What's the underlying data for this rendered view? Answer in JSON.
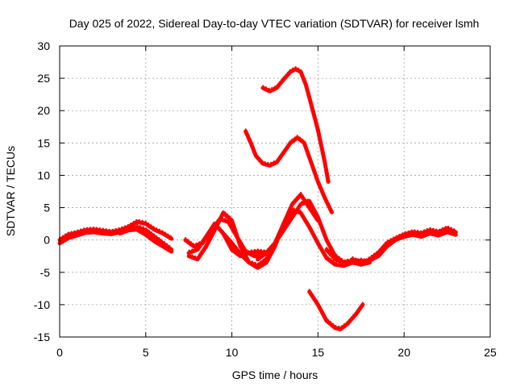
{
  "chart_data": {
    "type": "line",
    "title": "Day 025 of 2022, Sidereal Day-to-day VTEC variation (SDTVAR) for receiver lsmh",
    "xlabel": "GPS time / hours",
    "ylabel": "SDTVAR / TECUs",
    "xlim": [
      0,
      25
    ],
    "ylim": [
      -15,
      30
    ],
    "xticks": [
      0,
      5,
      10,
      15,
      20,
      25
    ],
    "yticks": [
      -15,
      -10,
      -5,
      0,
      5,
      10,
      15,
      20,
      25,
      30
    ],
    "grid": true,
    "color": "#ff0000",
    "series": [
      {
        "name": "arc-early",
        "x": [
          0,
          0.5,
          1,
          1.5,
          2,
          2.5,
          3,
          3.5,
          4,
          4.5,
          5,
          5.5,
          6,
          6.5
        ],
        "y": [
          0,
          0.8,
          1.1,
          1.5,
          1.6,
          1.4,
          1.2,
          1.5,
          2.0,
          2.8,
          2.5,
          1.6,
          1.0,
          0.2
        ]
      },
      {
        "name": "arc-early-2",
        "x": [
          0,
          0.5,
          1,
          1.5,
          2,
          2.5,
          3,
          3.5,
          4,
          4.5,
          5,
          5.5,
          6,
          6.5
        ],
        "y": [
          -0.5,
          0.3,
          0.7,
          1.1,
          1.2,
          1.0,
          0.9,
          1.2,
          1.6,
          2.0,
          1.5,
          0.5,
          -0.5,
          -1.5
        ]
      },
      {
        "name": "arc-early-3",
        "x": [
          3.5,
          4,
          4.5,
          5,
          5.5,
          6,
          6.5
        ],
        "y": [
          1.0,
          1.5,
          1.6,
          0.8,
          -0.2,
          -1.0,
          -1.8
        ]
      },
      {
        "name": "arc-mid-a",
        "x": [
          7.5,
          8,
          8.5,
          9,
          9.5,
          10,
          10.5,
          11,
          11.5,
          12
        ],
        "y": [
          -2.0,
          -1.5,
          0.5,
          2.5,
          1.0,
          -1.5,
          -2.5,
          -2.0,
          -1.8,
          -2.0
        ]
      },
      {
        "name": "arc-mid-b",
        "x": [
          7.3,
          7.8,
          8.3,
          8.8,
          9.3,
          9.8,
          10.3,
          10.8,
          11.3,
          11.8
        ],
        "y": [
          0,
          -1.0,
          -0.5,
          1.5,
          3.2,
          2.8,
          0.5,
          -1.8,
          -2.5,
          -2.4
        ]
      },
      {
        "name": "arc-mid-c",
        "x": [
          7.5,
          8,
          8.5,
          9,
          9.5,
          10,
          10.5,
          11,
          11.5,
          12,
          12.5,
          13,
          13.5,
          14,
          14.5,
          15
        ],
        "y": [
          -2.5,
          -3.0,
          -1.0,
          1.5,
          4.2,
          3.0,
          -1.0,
          -3.5,
          -4.3,
          -3.5,
          -1.0,
          2.5,
          5.5,
          7.0,
          5.0,
          3.0
        ]
      },
      {
        "name": "arc-mid-d",
        "x": [
          9.5,
          10,
          10.5,
          11,
          11.5,
          12,
          12.5,
          13,
          13.5,
          14,
          14.5,
          15,
          15.5,
          16,
          16.5,
          17,
          17.5,
          18
        ],
        "y": [
          1.0,
          -0.5,
          -2.2,
          -3.5,
          -4.0,
          -3.0,
          -0.5,
          2.5,
          4.6,
          4.2,
          2.0,
          -0.5,
          -2.8,
          -3.8,
          -4.0,
          -3.5,
          -3.2,
          -3.5
        ]
      },
      {
        "name": "arc-mid-e",
        "x": [
          11.5,
          12,
          12.5,
          13,
          13.5,
          14,
          14.5,
          15,
          15.5,
          16,
          16.5,
          17,
          17.5,
          18
        ],
        "y": [
          -3.0,
          -2.0,
          -0.5,
          1.5,
          3.5,
          5.5,
          6.0,
          3.5,
          0.0,
          -2.5,
          -3.5,
          -3.2,
          -3.8,
          -3.5
        ]
      },
      {
        "name": "arc-late",
        "x": [
          15.5,
          16,
          16.5,
          17,
          17.5,
          18,
          18.5,
          19,
          19.5,
          20,
          20.5,
          21,
          21.5,
          22,
          22.5,
          23
        ],
        "y": [
          -1.5,
          -3.0,
          -3.5,
          -3.5,
          -3.8,
          -3.0,
          -2.0,
          -0.5,
          0.2,
          0.8,
          1.2,
          1.0,
          1.5,
          1.2,
          1.8,
          1.2
        ]
      },
      {
        "name": "arc-late-2",
        "x": [
          17,
          17.5,
          18,
          18.5,
          19,
          19.5,
          20,
          20.5,
          21,
          21.5,
          22,
          22.5,
          23
        ],
        "y": [
          -3.0,
          -3.5,
          -3.2,
          -2.5,
          -1.0,
          0.0,
          0.5,
          0.8,
          0.5,
          1.0,
          0.7,
          1.2,
          0.8
        ]
      },
      {
        "name": "arc-high-25",
        "x": [
          11.8,
          12.2,
          12.6,
          13,
          13.4,
          13.7,
          14,
          14.3,
          14.6,
          15,
          15.4,
          15.6
        ],
        "y": [
          23.5,
          23.0,
          23.5,
          24.8,
          26.0,
          26.4,
          26.0,
          24.0,
          21.0,
          17.0,
          12.0,
          9.0
        ]
      },
      {
        "name": "arc-high-15",
        "x": [
          10.8,
          11.1,
          11.4,
          11.8,
          12.2,
          12.6,
          13,
          13.4,
          13.8,
          14.2,
          14.6,
          15,
          15.4,
          15.8
        ],
        "y": [
          16.8,
          15.0,
          13.0,
          11.8,
          11.5,
          12.0,
          13.5,
          15.0,
          15.8,
          15.0,
          12.0,
          9.0,
          6.5,
          4.3
        ]
      },
      {
        "name": "arc-low",
        "x": [
          14.5,
          15,
          15.5,
          16,
          16.3,
          16.7,
          17.2,
          17.6
        ],
        "y": [
          -8.0,
          -10.0,
          -12.5,
          -13.6,
          -13.8,
          -13.0,
          -11.5,
          -10.0
        ]
      }
    ]
  }
}
